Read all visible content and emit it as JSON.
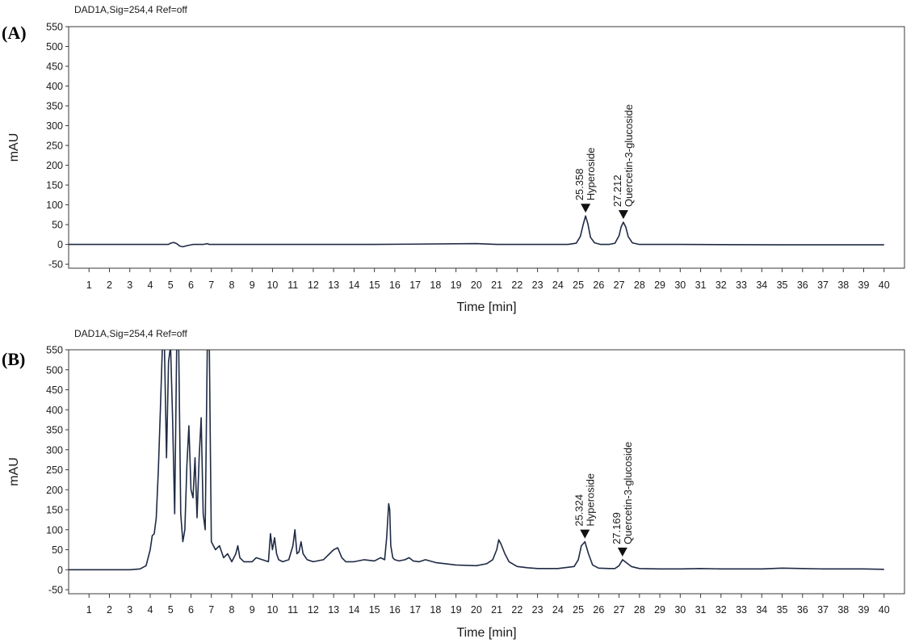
{
  "chart_data": [
    {
      "type": "line",
      "panel_label": "(A)",
      "title": "DAD1A,Sig=254,4   Ref=off",
      "xlabel": "Time [min]",
      "ylabel": "mAU",
      "xlim": [
        0,
        41
      ],
      "ylim": [
        -60,
        550
      ],
      "x_ticks": [
        1,
        2,
        3,
        4,
        5,
        6,
        7,
        8,
        9,
        10,
        11,
        12,
        13,
        14,
        15,
        16,
        17,
        18,
        19,
        20,
        21,
        22,
        23,
        24,
        25,
        26,
        27,
        28,
        29,
        30,
        31,
        32,
        33,
        34,
        35,
        36,
        37,
        38,
        39,
        40
      ],
      "y_ticks": [
        -50,
        0,
        50,
        100,
        150,
        200,
        250,
        300,
        350,
        400,
        450,
        500,
        550
      ],
      "series": [
        {
          "x": [
            0,
            4.9,
            5.0,
            5.15,
            5.3,
            5.45,
            5.6,
            5.8,
            6.1,
            6.6,
            6.8,
            6.9,
            7.0,
            7.5,
            15,
            20,
            21,
            24.5,
            24.9,
            25.1,
            25.25,
            25.358,
            25.47,
            25.6,
            25.8,
            26.1,
            26.5,
            26.8,
            27.0,
            27.1,
            27.212,
            27.33,
            27.45,
            27.65,
            28.0,
            30,
            35,
            40
          ],
          "y": [
            0,
            0,
            3,
            5,
            2,
            -4,
            -6,
            -3,
            0,
            0,
            2,
            0,
            0,
            0,
            0,
            2,
            0,
            0,
            3,
            20,
            52,
            72,
            52,
            18,
            4,
            0,
            0,
            3,
            22,
            44,
            56,
            44,
            20,
            4,
            0,
            0,
            -1,
            -1
          ]
        }
      ],
      "peaks": [
        {
          "rt": "25.358",
          "name": "Hyperoside",
          "x": 25.358,
          "y": 72
        },
        {
          "rt": "27.212",
          "name": "Quercetin-3-glucoside",
          "x": 27.212,
          "y": 56
        }
      ]
    },
    {
      "type": "line",
      "panel_label": "(B)",
      "title": "DAD1A,Sig=254,4   Ref=off",
      "xlabel": "Time [min]",
      "ylabel": "mAU",
      "xlim": [
        0,
        41
      ],
      "ylim": [
        -60,
        550
      ],
      "x_ticks": [
        1,
        2,
        3,
        4,
        5,
        6,
        7,
        8,
        9,
        10,
        11,
        12,
        13,
        14,
        15,
        16,
        17,
        18,
        19,
        20,
        21,
        22,
        23,
        24,
        25,
        26,
        27,
        28,
        29,
        30,
        31,
        32,
        33,
        34,
        35,
        36,
        37,
        38,
        39,
        40
      ],
      "y_ticks": [
        -50,
        0,
        50,
        100,
        150,
        200,
        250,
        300,
        350,
        400,
        450,
        500,
        550
      ],
      "series": [
        {
          "x": [
            0,
            3.0,
            3.5,
            3.8,
            4.0,
            4.1,
            4.2,
            4.3,
            4.4,
            4.5,
            4.6,
            4.7,
            4.8,
            4.9,
            5.0,
            5.1,
            5.2,
            5.3,
            5.4,
            5.5,
            5.6,
            5.7,
            5.8,
            5.9,
            6.0,
            6.1,
            6.2,
            6.3,
            6.4,
            6.5,
            6.6,
            6.7,
            6.8,
            6.9,
            7.0,
            7.2,
            7.4,
            7.6,
            7.8,
            8.0,
            8.2,
            8.3,
            8.4,
            8.6,
            9.0,
            9.2,
            9.5,
            9.8,
            9.9,
            10.0,
            10.1,
            10.2,
            10.3,
            10.5,
            10.8,
            11.0,
            11.1,
            11.2,
            11.3,
            11.4,
            11.5,
            11.7,
            12.0,
            12.5,
            13.0,
            13.2,
            13.4,
            13.6,
            14.0,
            14.5,
            15.0,
            15.3,
            15.5,
            15.6,
            15.7,
            15.75,
            15.8,
            15.9,
            16.0,
            16.2,
            16.5,
            16.7,
            16.9,
            17.2,
            17.5,
            18,
            19,
            20,
            20.5,
            20.8,
            21.0,
            21.1,
            21.2,
            21.4,
            21.6,
            22.0,
            22.5,
            23,
            24,
            24.8,
            25.0,
            25.15,
            25.324,
            25.5,
            25.7,
            26.0,
            26.5,
            26.8,
            27.0,
            27.169,
            27.35,
            27.6,
            28.0,
            29,
            30,
            31,
            32,
            33,
            34,
            35,
            36,
            37,
            38,
            39,
            40
          ],
          "y": [
            0,
            0,
            2,
            10,
            50,
            85,
            90,
            130,
            250,
            400,
            560,
            560,
            280,
            520,
            560,
            380,
            140,
            560,
            560,
            140,
            70,
            100,
            260,
            360,
            200,
            180,
            280,
            130,
            280,
            380,
            140,
            100,
            560,
            560,
            70,
            50,
            60,
            30,
            40,
            20,
            40,
            60,
            30,
            20,
            20,
            30,
            25,
            20,
            90,
            50,
            80,
            40,
            25,
            20,
            25,
            60,
            100,
            40,
            45,
            70,
            40,
            25,
            20,
            25,
            50,
            55,
            30,
            20,
            20,
            25,
            22,
            30,
            25,
            80,
            165,
            150,
            60,
            30,
            25,
            22,
            25,
            30,
            22,
            20,
            25,
            18,
            12,
            10,
            15,
            25,
            50,
            75,
            65,
            40,
            20,
            8,
            5,
            3,
            3,
            8,
            25,
            60,
            70,
            40,
            12,
            4,
            3,
            3,
            10,
            25,
            18,
            8,
            3,
            2,
            2,
            3,
            2,
            2,
            2,
            4,
            3,
            2,
            2,
            2,
            1
          ]
        }
      ],
      "peaks": [
        {
          "rt": "25.324",
          "name": "Hyperoside",
          "x": 25.324,
          "y": 70
        },
        {
          "rt": "27.169",
          "name": "Quercetin-3-glucoside",
          "x": 27.169,
          "y": 25
        }
      ]
    }
  ]
}
